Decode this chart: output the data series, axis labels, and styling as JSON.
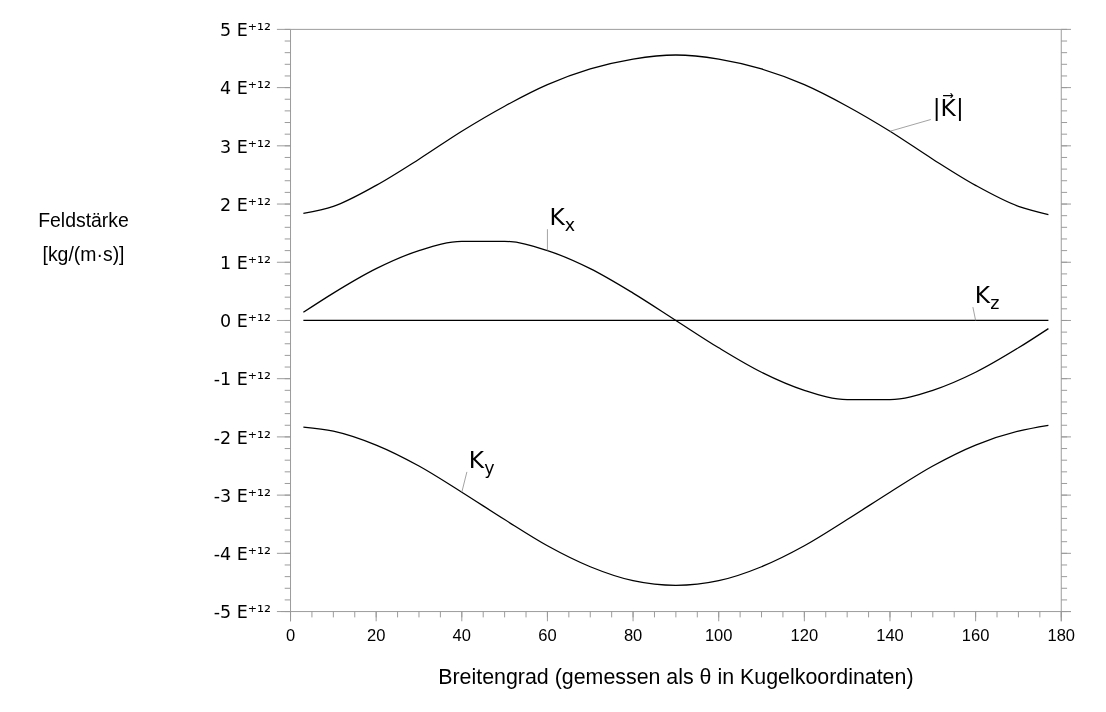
{
  "chart_data": {
    "type": "line",
    "xlabel": "Breitengrad (gemessen als θ in Kugelkoordinaten)",
    "ylabel": "Feldstärke [kg/(m·s)]",
    "x": [
      3,
      10,
      20,
      30,
      40,
      50,
      60,
      70,
      80,
      90,
      100,
      110,
      120,
      130,
      140,
      150,
      160,
      170,
      177
    ],
    "series": [
      {
        "name": "|K⃗|",
        "color": "#000000",
        "values": [
          1.84,
          1.96,
          2.32,
          2.77,
          3.25,
          3.68,
          4.05,
          4.32,
          4.49,
          4.56,
          4.49,
          4.32,
          4.05,
          3.68,
          3.25,
          2.77,
          2.32,
          1.96,
          1.82
        ]
      },
      {
        "name": "K$_{x}$",
        "color": "#000000",
        "values": [
          0.14,
          0.47,
          0.89,
          1.2,
          1.36,
          1.36,
          1.2,
          0.89,
          0.47,
          0,
          -0.47,
          -0.89,
          -1.2,
          -1.36,
          -1.36,
          -1.2,
          -0.89,
          -0.47,
          -0.14
        ]
      },
      {
        "name": "K$_{z}$",
        "color": "#000000",
        "values": [
          0,
          0,
          0,
          0,
          0,
          0,
          0,
          0,
          0,
          0,
          0,
          0,
          0,
          0,
          0,
          0,
          0,
          0,
          0
        ]
      },
      {
        "name": "K$_{y}$",
        "color": "#000000",
        "values": [
          -1.83,
          -1.9,
          -2.14,
          -2.5,
          -2.95,
          -3.42,
          -3.87,
          -4.23,
          -4.47,
          -4.55,
          -4.47,
          -4.23,
          -3.87,
          -3.42,
          -2.95,
          -2.5,
          -2.14,
          -1.9,
          -1.8
        ]
      }
    ],
    "xlim": [
      0,
      180
    ],
    "xticks": [
      0,
      20,
      40,
      60,
      80,
      100,
      120,
      140,
      160,
      180
    ],
    "ylim": [
      -5,
      5
    ],
    "yticks": [
      {
        "value": 5,
        "label": "5 E⁺¹²"
      },
      {
        "value": 4,
        "label": "4 E⁺¹²"
      },
      {
        "value": 3,
        "label": "3 E⁺¹²"
      },
      {
        "value": 2,
        "label": "2 E⁺¹²"
      },
      {
        "value": 1,
        "label": "1 E⁺¹²"
      },
      {
        "value": 0,
        "label": "0 E⁺¹²"
      },
      {
        "value": -1,
        "label": "-1 E⁺¹²"
      },
      {
        "value": -2,
        "label": "-2 E⁺¹²"
      },
      {
        "value": -3,
        "label": "-3 E⁺¹²"
      },
      {
        "value": -4,
        "label": "-4 E⁺¹²"
      },
      {
        "value": -5,
        "label": "-5 E⁺¹²"
      }
    ],
    "grid": false,
    "legend": false,
    "marker": "none",
    "line_style": "solid"
  }
}
